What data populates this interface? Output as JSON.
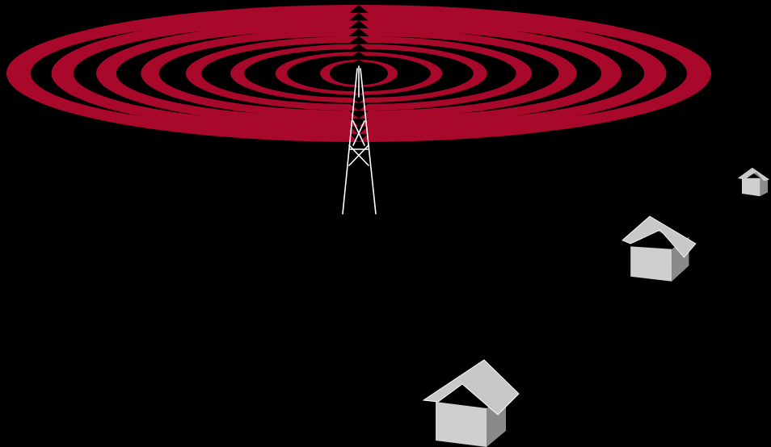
{
  "diagram": {
    "background_color": "#000000",
    "wave_color": "#a8092a",
    "tower_color": "#ffffff",
    "house_roof_light": "#c8c8c8",
    "house_roof_dark": "#8c8c8c",
    "house_wall_front": "#cfcfcf",
    "house_wall_side": "#8a8a8a",
    "house_count": 3,
    "wave_ring_count": 8
  }
}
